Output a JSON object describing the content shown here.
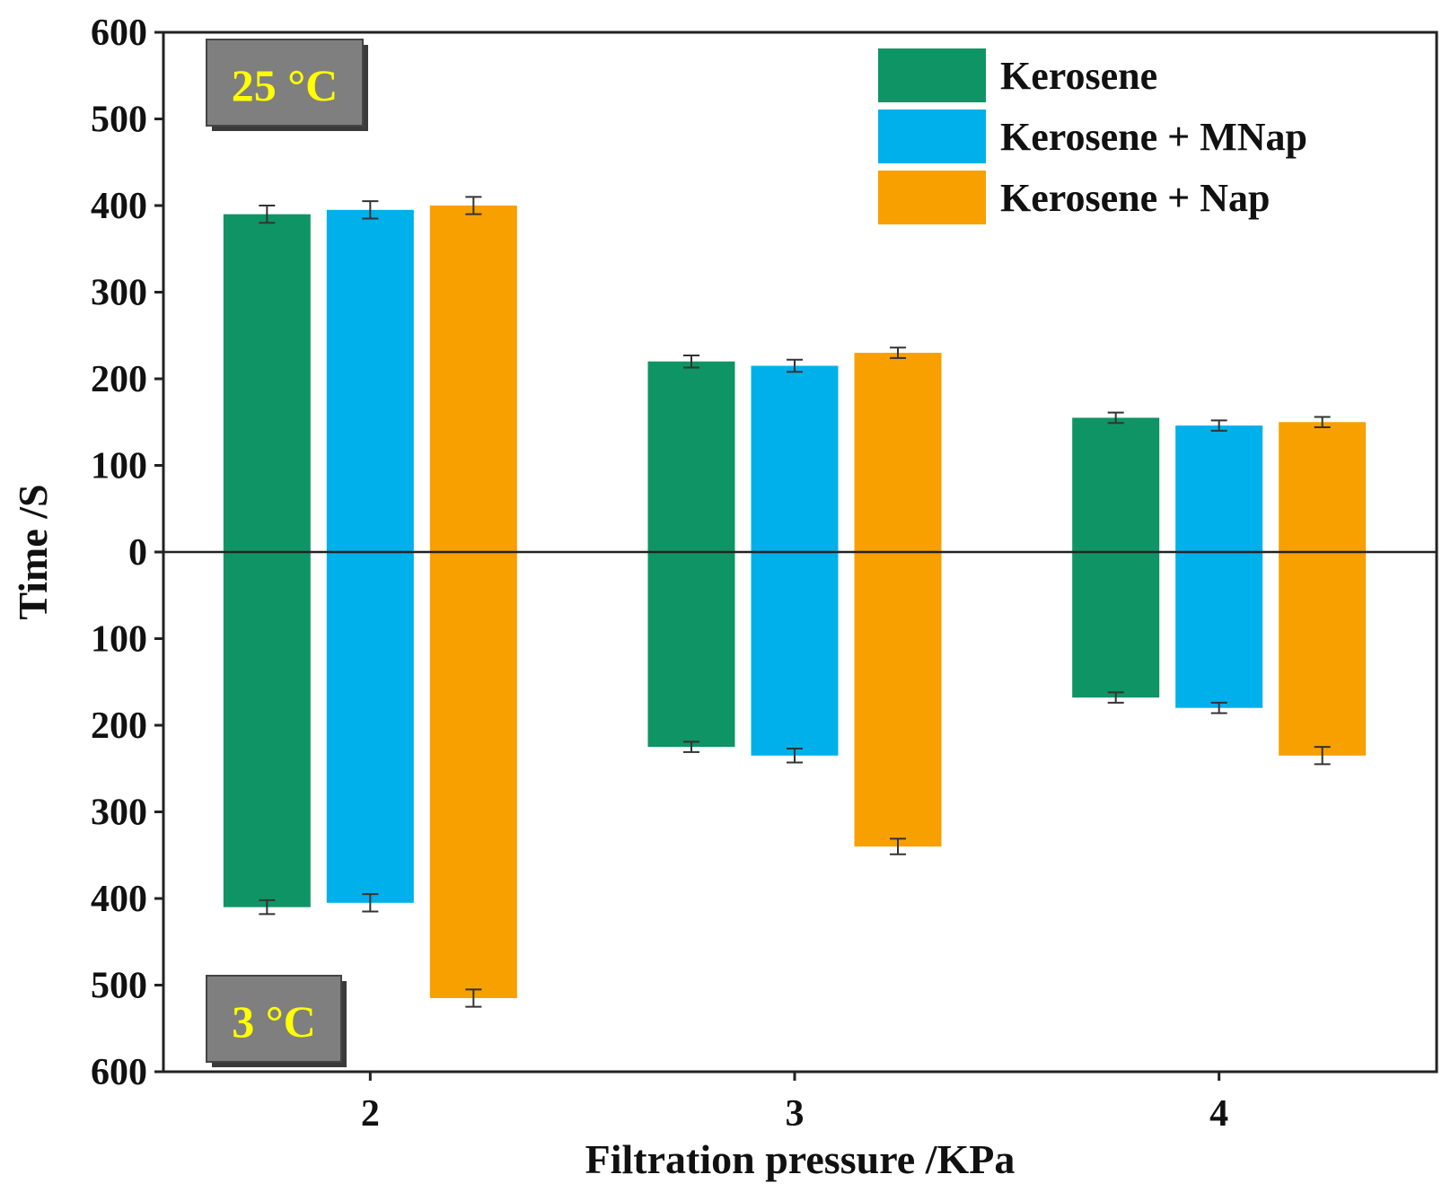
{
  "chart_data": {
    "type": "bar",
    "title": "",
    "xlabel": "Filtration pressure /KPa",
    "ylabel": "Time /S",
    "categories": [
      "2",
      "3",
      "4"
    ],
    "ylim": [
      -600,
      600
    ],
    "yticks": [
      {
        "value": 600,
        "label": "600"
      },
      {
        "value": 500,
        "label": "500"
      },
      {
        "value": 400,
        "label": "400"
      },
      {
        "value": 300,
        "label": "300"
      },
      {
        "value": 200,
        "label": "200"
      },
      {
        "value": 100,
        "label": "100"
      },
      {
        "value": 0,
        "label": "0"
      },
      {
        "value": -100,
        "label": "100"
      },
      {
        "value": -200,
        "label": "200"
      },
      {
        "value": -300,
        "label": "300"
      },
      {
        "value": -400,
        "label": "400"
      },
      {
        "value": -500,
        "label": "500"
      },
      {
        "value": -600,
        "label": "600"
      }
    ],
    "legend_position": "top-right",
    "series": [
      {
        "name": "Kerosene",
        "color": "#0f9466",
        "upper_values": [
          390,
          220,
          155
        ],
        "upper_errors": [
          10,
          7,
          6
        ],
        "lower_values": [
          410,
          225,
          168
        ],
        "lower_errors": [
          8,
          6,
          6
        ]
      },
      {
        "name": "Kerosene + MNap",
        "color": "#00b0ea",
        "upper_values": [
          395,
          215,
          146
        ],
        "upper_errors": [
          10,
          7,
          6
        ],
        "lower_values": [
          405,
          235,
          180
        ],
        "lower_errors": [
          10,
          8,
          6
        ]
      },
      {
        "name": "Kerosene + Nap",
        "color": "#f7a000",
        "upper_values": [
          400,
          230,
          150
        ],
        "upper_errors": [
          10,
          6,
          6
        ],
        "lower_values": [
          515,
          340,
          235
        ],
        "lower_errors": [
          10,
          9,
          10
        ]
      }
    ],
    "annotations": {
      "upper_label": "25 °C",
      "lower_label": "3 °C"
    }
  }
}
